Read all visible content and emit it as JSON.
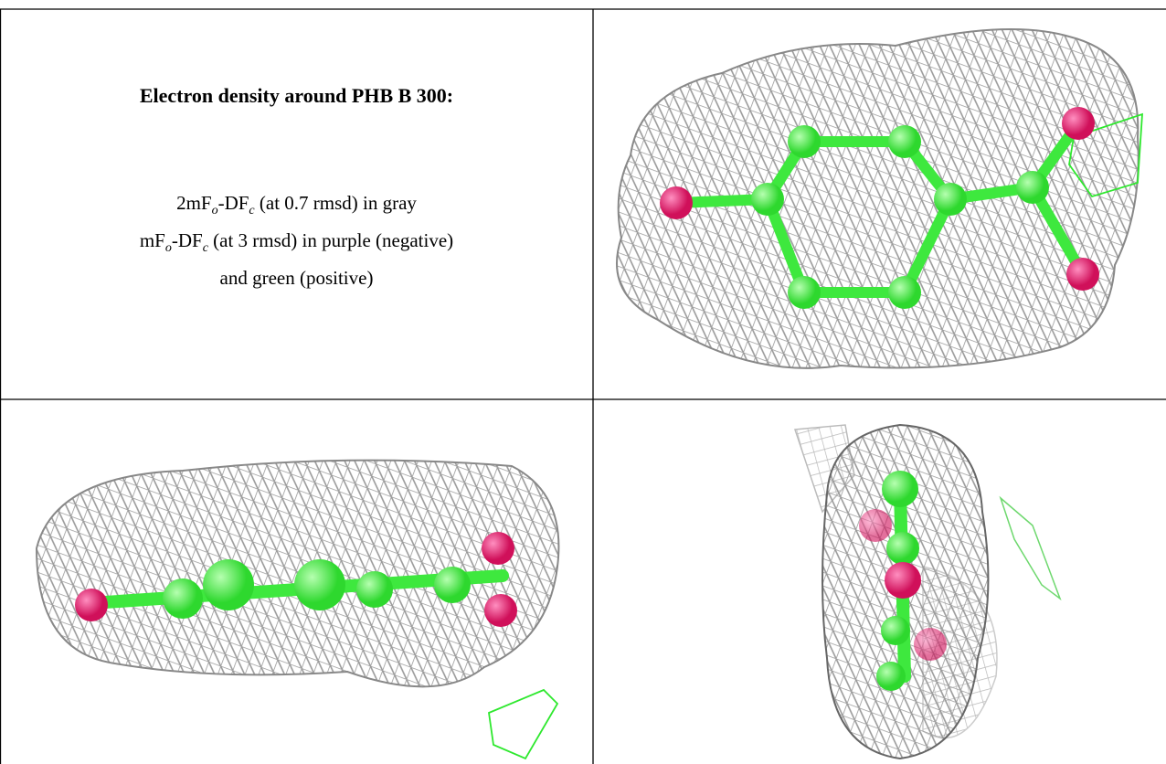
{
  "title": "Electron density around PHB B 300:",
  "caption_lines": [
    [
      {
        "text": "2mF"
      },
      {
        "text": "o",
        "sub": true
      },
      {
        "text": "-DF"
      },
      {
        "text": "c",
        "sub": true
      },
      {
        "text": " (at 0.7 rmsd) in gray"
      }
    ],
    [
      {
        "text": "mF"
      },
      {
        "text": "o",
        "sub": true
      },
      {
        "text": "-DF"
      },
      {
        "text": "c",
        "sub": true
      },
      {
        "text": " (at 3 rmsd) in purple (negative)"
      }
    ],
    [
      {
        "text": "and green (positive)"
      }
    ]
  ]
}
